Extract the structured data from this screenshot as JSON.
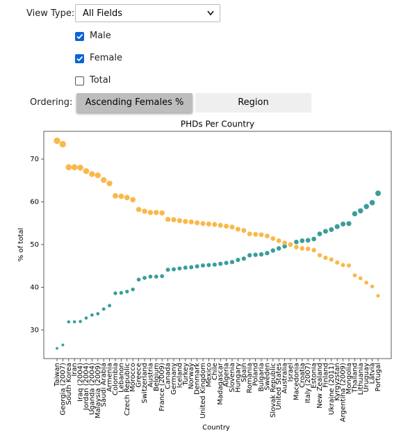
{
  "controls": {
    "view_type": {
      "label": "View Type:",
      "value": "All Fields"
    },
    "checkboxes": [
      {
        "label": "Male",
        "checked": true
      },
      {
        "label": "Female",
        "checked": true
      },
      {
        "label": "Total",
        "checked": false
      }
    ],
    "ordering": {
      "label": "Ordering:",
      "buttons": [
        {
          "label": "Ascending Females %",
          "active": true
        },
        {
          "label": "Region",
          "active": false
        }
      ]
    }
  },
  "chart_data": {
    "type": "scatter",
    "title": "PHDs Per Country",
    "x_label": "Country",
    "y_label": "% of total",
    "categories": [
      "Taiwan",
      "Georgia (2007)",
      "South Korea",
      "Iran",
      "Iraq (2004)",
      "Jordan (2004)",
      "Uganda (2004)",
      "Malaysia (2009)",
      "Saudi Arabia",
      "Armenia",
      "Colombia",
      "Lebanon",
      "Czech Republic",
      "Morocco",
      "Greece",
      "Switzerland",
      "Austria",
      "Belgium",
      "France (2009)",
      "Canada",
      "Germany",
      "Iceland",
      "Turkey",
      "Norway",
      "Denmark",
      "United Kingdom",
      "Mexico",
      "Chile",
      "Madagascar",
      "Algeria",
      "Slovenia",
      "Hungary",
      "Spain",
      "Romania",
      "Poland",
      "Bulgaria",
      "Sweden",
      "Slovak Republic",
      "United States",
      "Australia",
      "Israel",
      "Macedonia",
      "Croatia",
      "Italy (2007)",
      "Estonia",
      "New Zealand",
      "Finland",
      "Ukraine (2011)",
      "Kyrgyzstan",
      "Argentina (2009)",
      "Mongolia",
      "Thailand",
      "Lithuania",
      "Uruguay",
      "Latvia",
      "Portugal"
    ],
    "series": [
      {
        "color": "#3a9e98",
        "values": [
          25.7,
          26.5,
          31.9,
          31.9,
          32.0,
          32.8,
          33.5,
          33.8,
          34.9,
          35.7,
          38.6,
          38.7,
          39.0,
          39.5,
          41.8,
          42.2,
          42.5,
          42.5,
          42.6,
          44.1,
          44.2,
          44.4,
          44.6,
          44.7,
          44.9,
          45.1,
          45.2,
          45.3,
          45.5,
          45.7,
          45.9,
          46.4,
          46.7,
          47.5,
          47.6,
          47.7,
          48.0,
          48.6,
          49.1,
          49.6,
          50.0,
          50.6,
          50.9,
          51.0,
          51.3,
          52.5,
          53.1,
          53.5,
          54.2,
          54.8,
          54.9,
          57.2,
          57.9,
          58.9,
          59.8,
          62.0
        ]
      },
      {
        "color": "#f9b94a",
        "values": [
          74.3,
          73.5,
          68.1,
          68.1,
          68.0,
          67.2,
          66.5,
          66.2,
          65.1,
          64.3,
          61.4,
          61.3,
          61.0,
          60.5,
          58.2,
          57.8,
          57.5,
          57.5,
          57.4,
          55.9,
          55.8,
          55.6,
          55.4,
          55.3,
          55.1,
          54.9,
          54.8,
          54.7,
          54.5,
          54.3,
          54.1,
          53.6,
          53.3,
          52.5,
          52.4,
          52.3,
          52.0,
          51.4,
          50.9,
          50.4,
          50.0,
          49.4,
          49.1,
          49.0,
          48.7,
          47.5,
          46.9,
          46.5,
          45.8,
          45.2,
          45.1,
          42.8,
          42.1,
          41.1,
          40.2,
          38.0
        ]
      }
    ],
    "ylim": [
      23.3,
      76.5
    ],
    "yticks": [
      30,
      40,
      50,
      60,
      70
    ],
    "grid": false
  }
}
